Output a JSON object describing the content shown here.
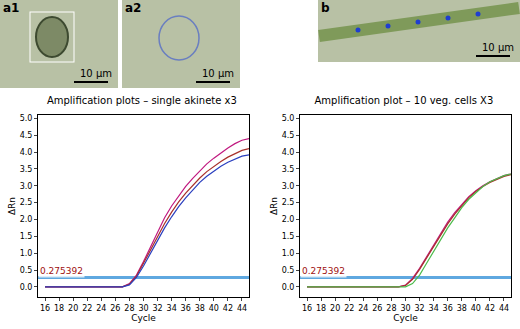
{
  "panels": [
    {
      "label": "a1",
      "scale_bar": "10 μm"
    },
    {
      "label": "a2",
      "scale_bar": "10 μm"
    },
    {
      "label": "b",
      "scale_bar": "10 μm"
    }
  ],
  "chart_data": [
    {
      "type": "line",
      "title": "Amplification plots – single akinete x3",
      "x_label": "Cycle",
      "y_label": "ΔRn",
      "x": [
        16,
        17,
        18,
        19,
        20,
        21,
        22,
        23,
        24,
        25,
        26,
        27,
        28,
        29,
        30,
        31,
        32,
        33,
        34,
        35,
        36,
        37,
        38,
        39,
        40,
        41,
        42,
        43,
        44,
        45
      ],
      "series": [
        {
          "color": "#c0187f",
          "values": [
            0,
            0,
            0,
            0,
            0,
            0,
            0,
            0,
            0,
            0,
            0,
            0,
            0.1,
            0.35,
            0.75,
            1.2,
            1.65,
            2.05,
            2.4,
            2.7,
            2.98,
            3.22,
            3.45,
            3.65,
            3.82,
            3.98,
            4.12,
            4.25,
            4.35,
            4.4
          ]
        },
        {
          "color": "#a8302a",
          "values": [
            0,
            0,
            0,
            0,
            0,
            0,
            0,
            0,
            0,
            0,
            0,
            0,
            0.08,
            0.32,
            0.7,
            1.1,
            1.5,
            1.88,
            2.22,
            2.52,
            2.78,
            3.02,
            3.23,
            3.42,
            3.58,
            3.72,
            3.85,
            3.96,
            4.05,
            4.1
          ]
        },
        {
          "color": "#2a3fbf",
          "values": [
            0,
            0,
            0,
            0,
            0,
            0,
            0,
            0,
            0,
            0,
            0,
            0,
            0.06,
            0.28,
            0.62,
            1.0,
            1.38,
            1.75,
            2.08,
            2.38,
            2.64,
            2.88,
            3.1,
            3.28,
            3.44,
            3.58,
            3.7,
            3.8,
            3.88,
            3.92
          ]
        }
      ],
      "threshold": 0.275392,
      "xlim": [
        15,
        45
      ],
      "xticks": [
        16,
        18,
        20,
        22,
        24,
        26,
        28,
        30,
        32,
        34,
        36,
        38,
        40,
        42,
        44
      ],
      "ylim": [
        -0.3,
        5.1
      ],
      "yticks": [
        {
          "value": 0,
          "label": "0.0"
        },
        {
          "value": 0.5,
          "label": "0.5"
        },
        {
          "value": 1,
          "label": "1.0"
        },
        {
          "value": 1.5,
          "label": "1.5"
        },
        {
          "value": 2,
          "label": "2.0"
        },
        {
          "value": 2.5,
          "label": "2.5"
        },
        {
          "value": 3,
          "label": "3.0"
        },
        {
          "value": 3.5,
          "label": "3.5"
        },
        {
          "value": 4,
          "label": "4.0"
        },
        {
          "value": 4.5,
          "label": "4.5"
        },
        {
          "value": 5,
          "label": "5.0"
        }
      ],
      "grid": false
    },
    {
      "type": "line",
      "title": "Amplification plot – 10 veg. cells X3",
      "x_label": "Cycle",
      "y_label": "ΔRn",
      "x": [
        16,
        17,
        18,
        19,
        20,
        21,
        22,
        23,
        24,
        25,
        26,
        27,
        28,
        29,
        30,
        31,
        32,
        33,
        34,
        35,
        36,
        37,
        38,
        39,
        40,
        41,
        42,
        43,
        44,
        45
      ],
      "series": [
        {
          "color": "#c0187f",
          "values": [
            0,
            0,
            0,
            0,
            0,
            0,
            0,
            0,
            0,
            0,
            0,
            0,
            0,
            0,
            0.05,
            0.25,
            0.55,
            0.9,
            1.25,
            1.6,
            1.92,
            2.2,
            2.45,
            2.68,
            2.85,
            3.0,
            3.12,
            3.22,
            3.3,
            3.35
          ]
        },
        {
          "color": "#a8302a",
          "values": [
            0,
            0,
            0,
            0,
            0,
            0,
            0,
            0,
            0,
            0,
            0,
            0,
            0,
            0,
            0.04,
            0.22,
            0.52,
            0.86,
            1.2,
            1.55,
            1.87,
            2.16,
            2.42,
            2.65,
            2.83,
            2.98,
            3.1,
            3.2,
            3.28,
            3.33
          ]
        },
        {
          "color": "#4cbb4c",
          "values": [
            0,
            0,
            0,
            0,
            0,
            0,
            0,
            0,
            0,
            0,
            0,
            0,
            0,
            0,
            0.0,
            0.1,
            0.35,
            0.7,
            1.05,
            1.4,
            1.75,
            2.05,
            2.35,
            2.6,
            2.8,
            2.98,
            3.12,
            3.22,
            3.3,
            3.35
          ]
        }
      ],
      "threshold": 0.275392,
      "xlim": [
        15,
        45
      ],
      "xticks": [
        16,
        18,
        20,
        22,
        24,
        26,
        28,
        30,
        32,
        34,
        36,
        38,
        40,
        42,
        44
      ],
      "ylim": [
        -0.3,
        5.1
      ],
      "yticks": [
        {
          "value": 0,
          "label": "0.0"
        },
        {
          "value": 0.5,
          "label": "0.5"
        },
        {
          "value": 1,
          "label": "1.0"
        },
        {
          "value": 1.5,
          "label": "1.5"
        },
        {
          "value": 2,
          "label": "2.0"
        },
        {
          "value": 2.5,
          "label": "2.5"
        },
        {
          "value": 3,
          "label": "3.0"
        },
        {
          "value": 3.5,
          "label": "3.5"
        },
        {
          "value": 4,
          "label": "4.0"
        },
        {
          "value": 4.5,
          "label": "4.5"
        },
        {
          "value": 5,
          "label": "5.0"
        }
      ],
      "grid": false
    }
  ]
}
